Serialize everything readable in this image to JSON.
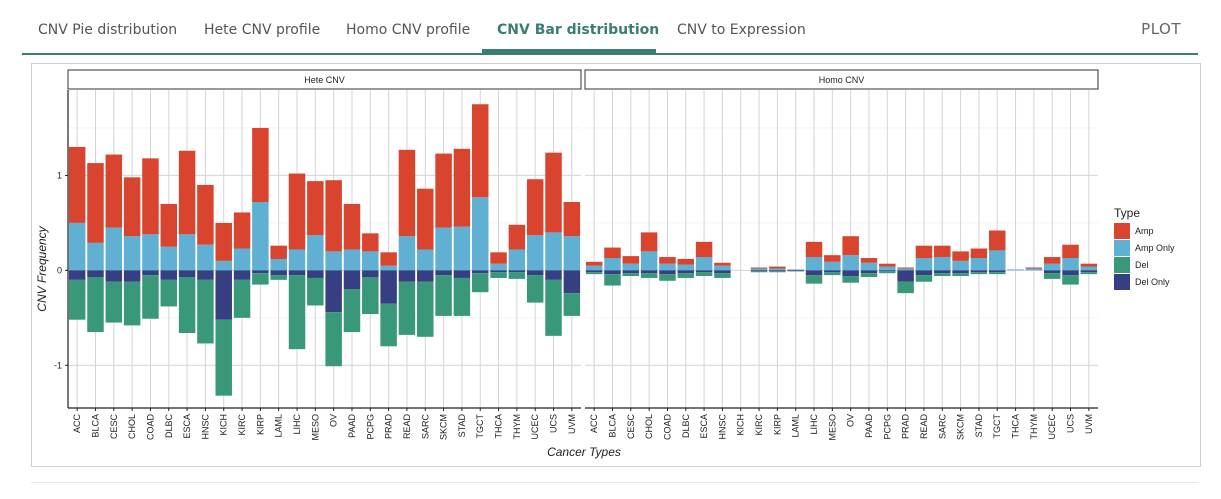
{
  "tabs": [
    {
      "label": "CNV Pie distribution",
      "active": false
    },
    {
      "label": "Hete CNV profile",
      "active": false
    },
    {
      "label": "Homo CNV profile",
      "active": false
    },
    {
      "label": "CNV Bar distribution",
      "active": true
    },
    {
      "label": "CNV to Expression",
      "active": false
    }
  ],
  "plot_label": "PLOT",
  "chart_data": {
    "type": "bar",
    "stacked": true,
    "xlabel": "Cancer Types",
    "ylabel": "CNV Frequency",
    "ylim": [
      -1.45,
      1.9
    ],
    "yticks": [
      -1,
      0,
      1
    ],
    "grid": true,
    "legend": {
      "title": "Type",
      "position": "right",
      "entries": [
        {
          "name": "Amp",
          "color": "#d9442e"
        },
        {
          "name": "Amp Only",
          "color": "#5fb0d3"
        },
        {
          "name": "Del",
          "color": "#3a987a"
        },
        {
          "name": "Del Only",
          "color": "#363f82"
        }
      ]
    },
    "categories": [
      "ACC",
      "BLCA",
      "CESC",
      "CHOL",
      "COAD",
      "DLBC",
      "ESCA",
      "HNSC",
      "KICH",
      "KIRC",
      "KIRP",
      "LAML",
      "LIHC",
      "MESO",
      "OV",
      "PAAD",
      "PCPG",
      "PRAD",
      "READ",
      "SARC",
      "SKCM",
      "STAD",
      "TGCT",
      "THCA",
      "THYM",
      "UCEC",
      "UCS",
      "UVM"
    ],
    "panels": [
      {
        "title": "Hete CNV",
        "series": [
          {
            "name": "Amp Only",
            "values": [
              0.5,
              0.29,
              0.45,
              0.36,
              0.38,
              0.25,
              0.38,
              0.27,
              0.1,
              0.23,
              0.72,
              0.12,
              0.22,
              0.37,
              0.2,
              0.22,
              0.2,
              0.05,
              0.36,
              0.22,
              0.45,
              0.46,
              0.77,
              0.07,
              0.22,
              0.37,
              0.4,
              0.36
            ]
          },
          {
            "name": "Amp",
            "values": [
              0.8,
              0.84,
              0.77,
              0.62,
              0.8,
              0.45,
              0.88,
              0.63,
              0.4,
              0.38,
              0.78,
              0.14,
              0.8,
              0.57,
              0.75,
              0.48,
              0.19,
              0.14,
              0.91,
              0.64,
              0.78,
              0.82,
              0.98,
              0.12,
              0.26,
              0.59,
              0.84,
              0.36
            ]
          },
          {
            "name": "Del Only",
            "values": [
              -0.1,
              -0.07,
              -0.12,
              -0.12,
              -0.05,
              -0.1,
              -0.07,
              -0.1,
              -0.52,
              -0.1,
              -0.03,
              -0.05,
              -0.05,
              -0.08,
              -0.44,
              -0.2,
              -0.07,
              -0.35,
              -0.12,
              -0.12,
              -0.05,
              -0.08,
              -0.03,
              -0.02,
              -0.02,
              -0.05,
              -0.1,
              -0.24
            ]
          },
          {
            "name": "Del",
            "values": [
              -0.42,
              -0.58,
              -0.43,
              -0.46,
              -0.46,
              -0.28,
              -0.59,
              -0.67,
              -0.8,
              -0.4,
              -0.12,
              -0.05,
              -0.78,
              -0.29,
              -0.57,
              -0.45,
              -0.39,
              -0.45,
              -0.56,
              -0.58,
              -0.43,
              -0.4,
              -0.2,
              -0.06,
              -0.07,
              -0.29,
              -0.59,
              -0.24
            ]
          }
        ]
      },
      {
        "title": "Homo CNV",
        "series": [
          {
            "name": "Amp Only",
            "values": [
              0.05,
              0.13,
              0.07,
              0.2,
              0.07,
              0.06,
              0.14,
              0.05,
              0.0,
              0.02,
              0.02,
              0.01,
              0.14,
              0.09,
              0.16,
              0.08,
              0.04,
              0.02,
              0.13,
              0.14,
              0.1,
              0.13,
              0.21,
              0.01,
              0.02,
              0.07,
              0.13,
              0.04
            ]
          },
          {
            "name": "Amp",
            "values": [
              0.04,
              0.11,
              0.08,
              0.2,
              0.07,
              0.06,
              0.16,
              0.03,
              0.0,
              0.01,
              0.02,
              0.0,
              0.16,
              0.07,
              0.2,
              0.05,
              0.03,
              0.01,
              0.13,
              0.12,
              0.1,
              0.1,
              0.21,
              0.0,
              0.01,
              0.07,
              0.14,
              0.03
            ]
          },
          {
            "name": "Del Only",
            "values": [
              -0.02,
              -0.04,
              -0.03,
              -0.03,
              -0.04,
              -0.03,
              -0.02,
              -0.03,
              0.0,
              -0.01,
              -0.01,
              -0.01,
              -0.05,
              -0.02,
              -0.06,
              -0.03,
              -0.01,
              -0.12,
              -0.05,
              -0.03,
              -0.03,
              -0.02,
              -0.02,
              0.0,
              0.0,
              -0.03,
              -0.05,
              -0.02
            ]
          },
          {
            "name": "Del",
            "values": [
              -0.02,
              -0.12,
              -0.03,
              -0.05,
              -0.07,
              -0.05,
              -0.04,
              -0.05,
              0.0,
              -0.01,
              -0.01,
              0.0,
              -0.09,
              -0.03,
              -0.07,
              -0.04,
              -0.02,
              -0.12,
              -0.07,
              -0.03,
              -0.03,
              -0.02,
              -0.02,
              0.0,
              0.0,
              -0.06,
              -0.1,
              -0.02
            ]
          }
        ]
      }
    ]
  }
}
